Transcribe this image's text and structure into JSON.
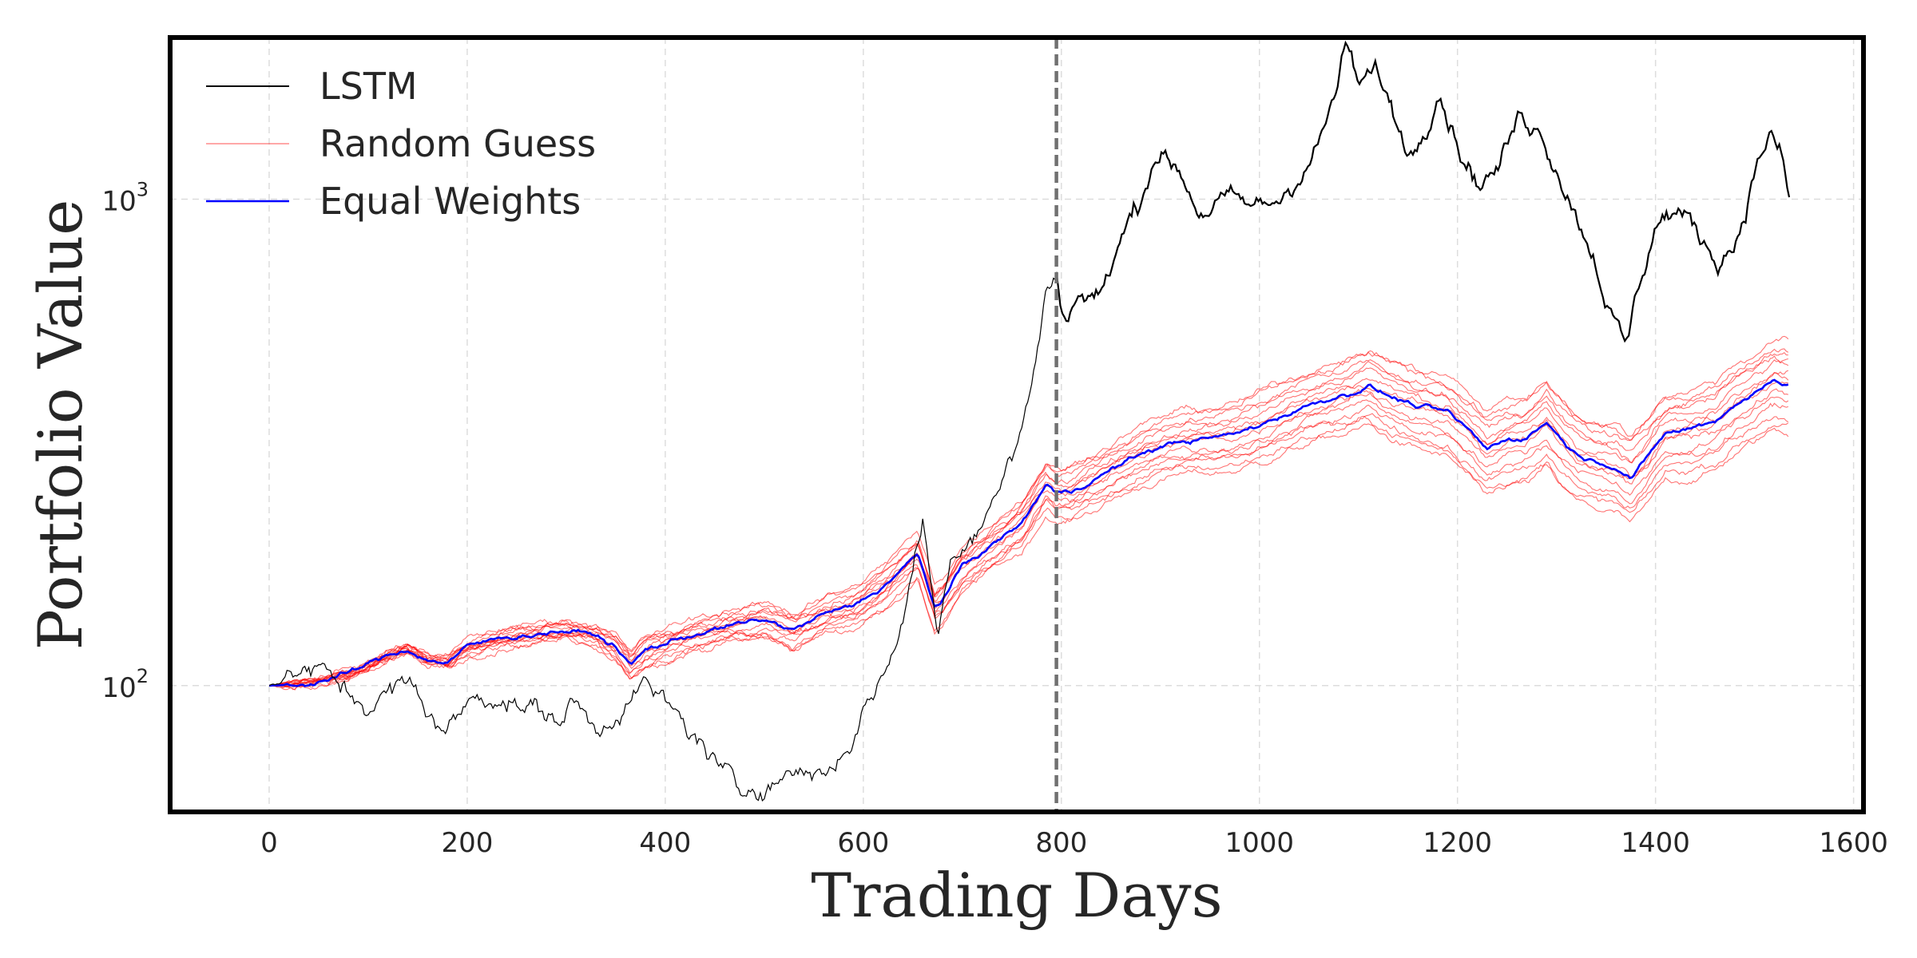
{
  "chart_data": {
    "type": "line",
    "xlabel": "Trading Days",
    "ylabel": "Portfolio Value",
    "xlim": [
      -100,
      1610
    ],
    "ylim": [
      55,
      2150
    ],
    "yscale": "log",
    "x_ticks": [
      0,
      200,
      400,
      600,
      800,
      1000,
      1200,
      1400,
      1600
    ],
    "y_ticks": [
      {
        "value": 100,
        "base": "10",
        "exp": "2"
      },
      {
        "value": 1000,
        "base": "10",
        "exp": "3"
      }
    ],
    "grid": true,
    "legend_position": "top-left",
    "vline": {
      "x": 795,
      "style": "dashed",
      "color": "#707070"
    },
    "colors": {
      "lstm": "#000000",
      "random": "#ff0000",
      "equal": "#0000ff"
    },
    "series": [
      {
        "name": "LSTM",
        "color": "#000000",
        "key_points": [
          [
            0,
            100
          ],
          [
            20,
            105
          ],
          [
            40,
            108
          ],
          [
            60,
            103
          ],
          [
            80,
            96
          ],
          [
            100,
            92
          ],
          [
            120,
            96
          ],
          [
            140,
            100
          ],
          [
            160,
            90
          ],
          [
            180,
            80
          ],
          [
            200,
            92
          ],
          [
            230,
            98
          ],
          [
            260,
            90
          ],
          [
            290,
            85
          ],
          [
            310,
            92
          ],
          [
            330,
            80
          ],
          [
            360,
            95
          ],
          [
            380,
            100
          ],
          [
            400,
            90
          ],
          [
            420,
            82
          ],
          [
            440,
            75
          ],
          [
            460,
            65
          ],
          [
            475,
            58
          ],
          [
            490,
            64
          ],
          [
            520,
            66
          ],
          [
            550,
            67
          ],
          [
            570,
            68
          ],
          [
            590,
            80
          ],
          [
            610,
            98
          ],
          [
            630,
            115
          ],
          [
            650,
            175
          ],
          [
            660,
            220
          ],
          [
            668,
            170
          ],
          [
            675,
            125
          ],
          [
            690,
            190
          ],
          [
            710,
            210
          ],
          [
            730,
            245
          ],
          [
            750,
            290
          ],
          [
            770,
            410
          ],
          [
            785,
            650
          ],
          [
            795,
            700
          ],
          [
            800,
            580
          ],
          [
            820,
            640
          ],
          [
            840,
            630
          ],
          [
            860,
            820
          ],
          [
            880,
            1000
          ],
          [
            895,
            1280
          ],
          [
            920,
            1150
          ],
          [
            940,
            950
          ],
          [
            960,
            1000
          ],
          [
            980,
            960
          ],
          [
            1000,
            950
          ],
          [
            1020,
            1000
          ],
          [
            1040,
            1150
          ],
          [
            1060,
            1300
          ],
          [
            1075,
            1600
          ],
          [
            1088,
            2050
          ],
          [
            1100,
            1700
          ],
          [
            1120,
            1800
          ],
          [
            1140,
            1400
          ],
          [
            1155,
            1250
          ],
          [
            1170,
            1500
          ],
          [
            1180,
            1820
          ],
          [
            1200,
            1350
          ],
          [
            1220,
            1100
          ],
          [
            1240,
            1150
          ],
          [
            1265,
            1500
          ],
          [
            1285,
            1400
          ],
          [
            1300,
            1200
          ],
          [
            1320,
            950
          ],
          [
            1340,
            760
          ],
          [
            1358,
            560
          ],
          [
            1370,
            490
          ],
          [
            1385,
            680
          ],
          [
            1400,
            900
          ],
          [
            1420,
            950
          ],
          [
            1440,
            860
          ],
          [
            1460,
            760
          ],
          [
            1480,
            820
          ],
          [
            1500,
            1150
          ],
          [
            1515,
            1380
          ],
          [
            1525,
            1250
          ],
          [
            1535,
            1000
          ]
        ]
      },
      {
        "name": "Random Guess",
        "color": "#ff0000",
        "count": 14
      },
      {
        "name": "Equal Weights",
        "color": "#0000ff",
        "key_points": [
          [
            0,
            100
          ],
          [
            40,
            101
          ],
          [
            80,
            106
          ],
          [
            120,
            115
          ],
          [
            140,
            119
          ],
          [
            160,
            113
          ],
          [
            180,
            112
          ],
          [
            200,
            120
          ],
          [
            240,
            126
          ],
          [
            280,
            129
          ],
          [
            300,
            130
          ],
          [
            330,
            127
          ],
          [
            350,
            120
          ],
          [
            365,
            110
          ],
          [
            380,
            118
          ],
          [
            400,
            122
          ],
          [
            430,
            128
          ],
          [
            460,
            132
          ],
          [
            500,
            136
          ],
          [
            530,
            130
          ],
          [
            560,
            140
          ],
          [
            590,
            145
          ],
          [
            620,
            160
          ],
          [
            640,
            175
          ],
          [
            655,
            185
          ],
          [
            665,
            160
          ],
          [
            672,
            145
          ],
          [
            680,
            150
          ],
          [
            700,
            175
          ],
          [
            730,
            195
          ],
          [
            760,
            215
          ],
          [
            785,
            260
          ],
          [
            795,
            248
          ],
          [
            810,
            250
          ],
          [
            830,
            265
          ],
          [
            860,
            285
          ],
          [
            890,
            305
          ],
          [
            920,
            318
          ],
          [
            950,
            322
          ],
          [
            980,
            330
          ],
          [
            1010,
            350
          ],
          [
            1040,
            372
          ],
          [
            1070,
            390
          ],
          [
            1090,
            400
          ],
          [
            1110,
            415
          ],
          [
            1130,
            395
          ],
          [
            1160,
            375
          ],
          [
            1190,
            362
          ],
          [
            1210,
            335
          ],
          [
            1230,
            305
          ],
          [
            1250,
            322
          ],
          [
            1270,
            325
          ],
          [
            1290,
            350
          ],
          [
            1300,
            330
          ],
          [
            1320,
            300
          ],
          [
            1340,
            290
          ],
          [
            1360,
            285
          ],
          [
            1375,
            270
          ],
          [
            1390,
            290
          ],
          [
            1410,
            330
          ],
          [
            1430,
            335
          ],
          [
            1460,
            350
          ],
          [
            1480,
            380
          ],
          [
            1500,
            400
          ],
          [
            1520,
            425
          ],
          [
            1535,
            420
          ]
        ]
      }
    ]
  }
}
